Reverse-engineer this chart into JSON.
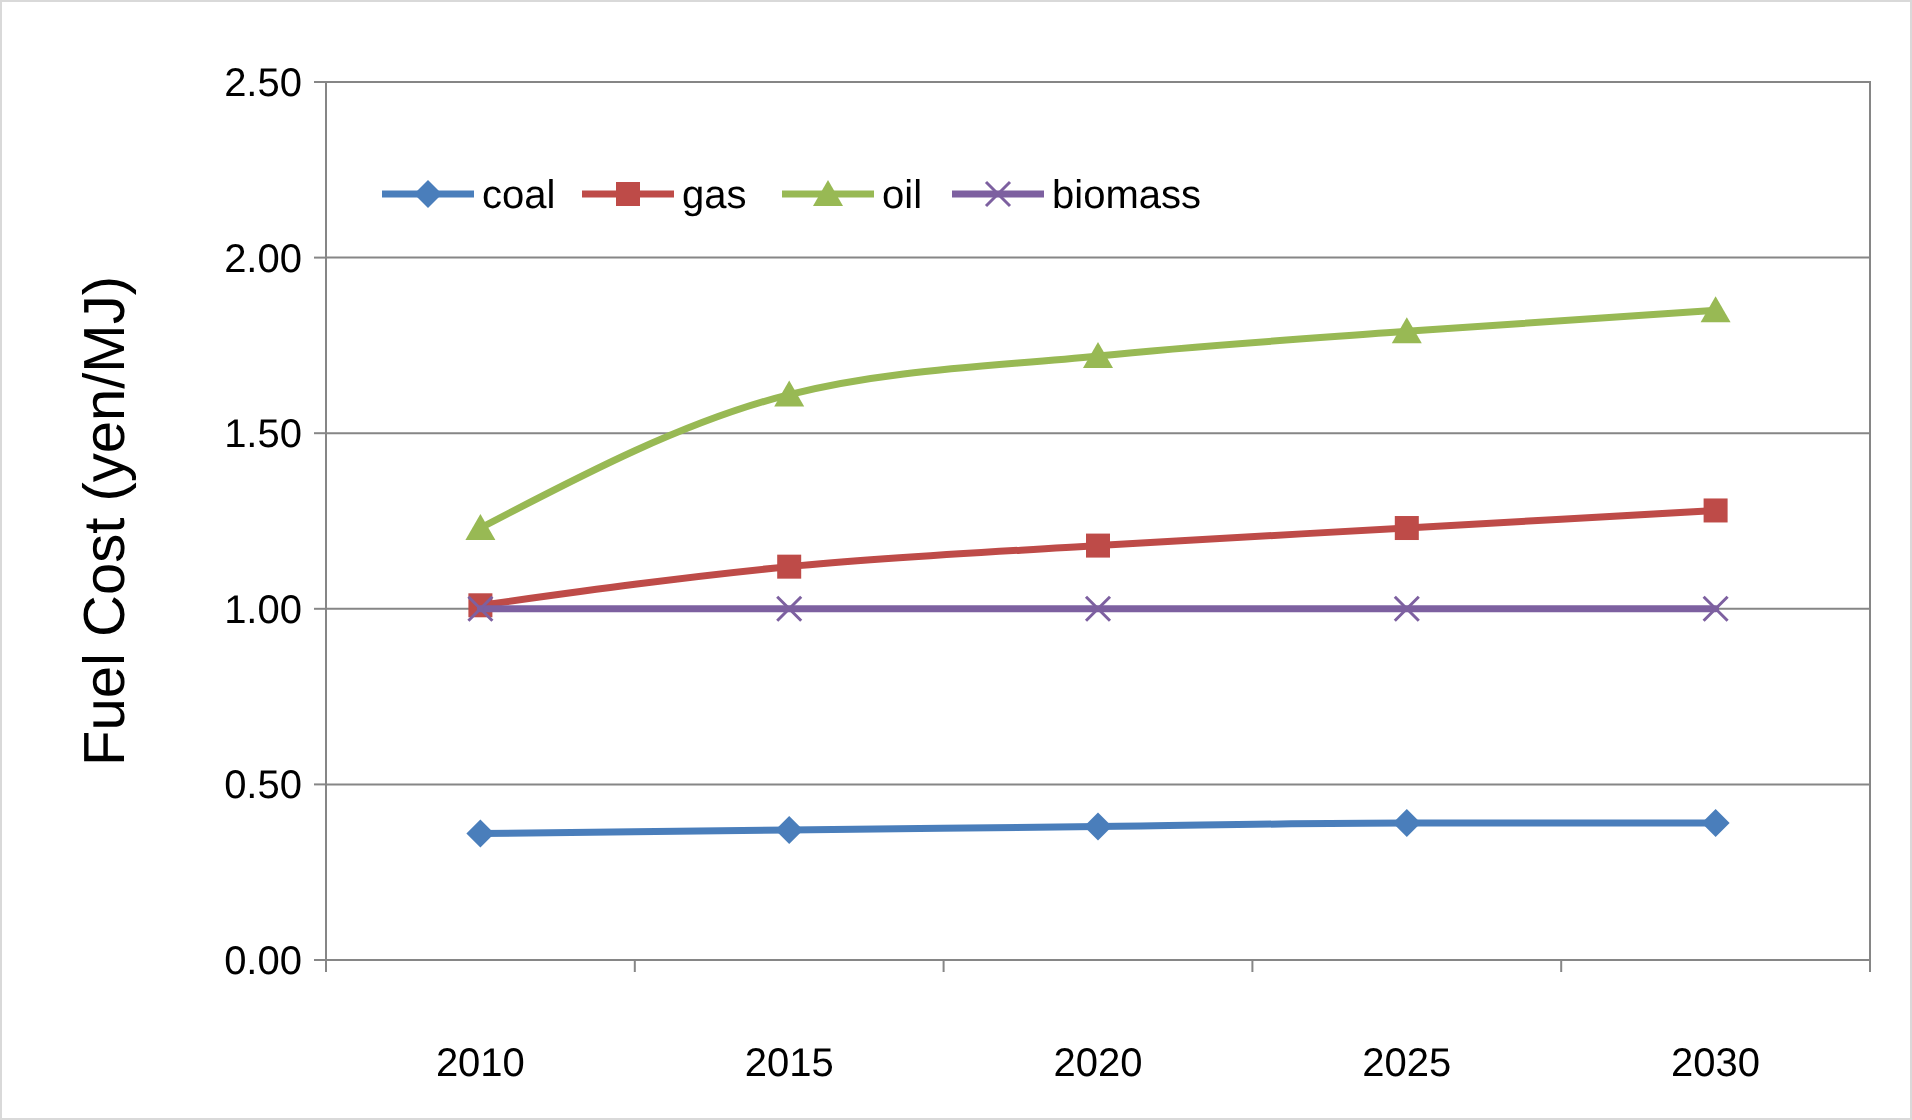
{
  "chart_data": {
    "type": "line",
    "ylabel": "Fuel Cost (yen/MJ)",
    "categories": [
      "2010",
      "2015",
      "2020",
      "2025",
      "2030"
    ],
    "series": [
      {
        "name": "coal",
        "color": "#4a7ebb",
        "marker": "diamond",
        "values": [
          0.36,
          0.37,
          0.38,
          0.39,
          0.39
        ]
      },
      {
        "name": "gas",
        "color": "#be4b48",
        "marker": "square",
        "values": [
          1.01,
          1.12,
          1.18,
          1.23,
          1.28
        ]
      },
      {
        "name": "oil",
        "color": "#98b954",
        "marker": "triangle",
        "values": [
          1.23,
          1.61,
          1.72,
          1.79,
          1.85
        ]
      },
      {
        "name": "biomass",
        "color": "#7d60a0",
        "marker": "cross",
        "values": [
          1.0,
          1.0,
          1.0,
          1.0,
          1.0
        ]
      }
    ],
    "ylim": [
      0,
      2.5
    ],
    "yticks": [
      {
        "value": 0,
        "label": "0.00"
      },
      {
        "value": 0.5,
        "label": "0.50"
      },
      {
        "value": 1,
        "label": "1.00"
      },
      {
        "value": 1.5,
        "label": "1.50"
      },
      {
        "value": 2,
        "label": "2.00"
      },
      {
        "value": 2.5,
        "label": "2.50"
      }
    ],
    "grid": "y",
    "legend": "top left",
    "line_style": "solid"
  }
}
